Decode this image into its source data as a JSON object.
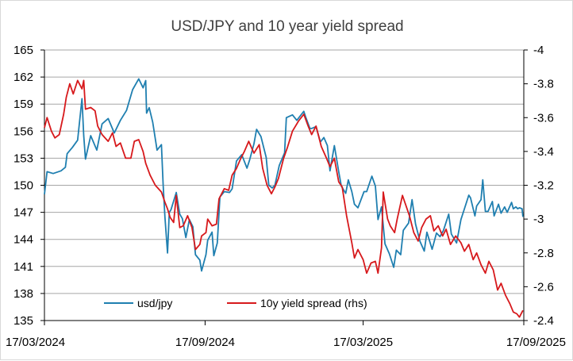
{
  "chart_data": {
    "type": "line",
    "title": "USD/JPY and 10 year yield spread",
    "x_axis": {
      "tick_labels": [
        "17/03/2024",
        "17/09/2024",
        "17/03/2025",
        "17/09/2025"
      ],
      "range": [
        "2024-03-17",
        "2025-09-17"
      ]
    },
    "y_left": {
      "range": [
        135,
        165
      ],
      "ticks": [
        135,
        138,
        141,
        144,
        147,
        150,
        153,
        156,
        159,
        162,
        165
      ]
    },
    "y_right": {
      "range": [
        -2.4,
        -4
      ],
      "ticks": [
        -4,
        -3.8,
        -3.6,
        -3.4,
        -3.2,
        -3,
        -2.8,
        -2.6,
        -2.4
      ]
    },
    "grid": true,
    "legend_position": "bottom-left",
    "series": [
      {
        "name": "usd/jpy",
        "axis": "left",
        "color": "#1f7fb0",
        "points": [
          [
            "2024-03-17",
            149.0
          ],
          [
            "2024-03-20",
            151.5
          ],
          [
            "2024-03-27",
            151.3
          ],
          [
            "2024-04-05",
            151.6
          ],
          [
            "2024-04-10",
            152.0
          ],
          [
            "2024-04-12",
            153.5
          ],
          [
            "2024-04-18",
            154.2
          ],
          [
            "2024-04-24",
            155.0
          ],
          [
            "2024-04-29",
            159.6
          ],
          [
            "2024-05-01",
            155.5
          ],
          [
            "2024-05-03",
            152.9
          ],
          [
            "2024-05-09",
            155.5
          ],
          [
            "2024-05-16",
            153.9
          ],
          [
            "2024-05-22",
            156.8
          ],
          [
            "2024-05-29",
            157.4
          ],
          [
            "2024-06-05",
            155.8
          ],
          [
            "2024-06-12",
            157.2
          ],
          [
            "2024-06-19",
            158.3
          ],
          [
            "2024-06-26",
            160.6
          ],
          [
            "2024-07-03",
            161.8
          ],
          [
            "2024-07-08",
            160.8
          ],
          [
            "2024-07-11",
            161.6
          ],
          [
            "2024-07-12",
            158.0
          ],
          [
            "2024-07-15",
            158.6
          ],
          [
            "2024-07-19",
            157.0
          ],
          [
            "2024-07-24",
            153.9
          ],
          [
            "2024-07-29",
            154.5
          ],
          [
            "2024-07-31",
            150.0
          ],
          [
            "2024-08-02",
            146.5
          ],
          [
            "2024-08-05",
            142.5
          ],
          [
            "2024-08-07",
            147.0
          ],
          [
            "2024-08-09",
            147.3
          ],
          [
            "2024-08-15",
            149.2
          ],
          [
            "2024-08-19",
            146.8
          ],
          [
            "2024-08-22",
            146.3
          ],
          [
            "2024-08-26",
            144.2
          ],
          [
            "2024-08-30",
            146.2
          ],
          [
            "2024-09-03",
            145.4
          ],
          [
            "2024-09-06",
            142.3
          ],
          [
            "2024-09-11",
            141.7
          ],
          [
            "2024-09-13",
            140.5
          ],
          [
            "2024-09-18",
            142.3
          ],
          [
            "2024-09-20",
            143.9
          ],
          [
            "2024-09-25",
            144.8
          ],
          [
            "2024-09-27",
            142.2
          ],
          [
            "2024-10-01",
            143.6
          ],
          [
            "2024-10-04",
            148.7
          ],
          [
            "2024-10-09",
            149.3
          ],
          [
            "2024-10-15",
            149.2
          ],
          [
            "2024-10-18",
            149.6
          ],
          [
            "2024-10-23",
            152.7
          ],
          [
            "2024-10-29",
            153.4
          ],
          [
            "2024-11-04",
            151.9
          ],
          [
            "2024-11-07",
            152.8
          ],
          [
            "2024-11-12",
            154.6
          ],
          [
            "2024-11-15",
            156.2
          ],
          [
            "2024-11-20",
            155.4
          ],
          [
            "2024-11-26",
            153.1
          ],
          [
            "2024-11-29",
            150.0
          ],
          [
            "2024-12-03",
            149.7
          ],
          [
            "2024-12-06",
            150.0
          ],
          [
            "2024-12-11",
            152.2
          ],
          [
            "2024-12-17",
            153.6
          ],
          [
            "2024-12-19",
            157.5
          ],
          [
            "2024-12-26",
            157.8
          ],
          [
            "2024-12-31",
            157.2
          ],
          [
            "2025-01-08",
            158.2
          ],
          [
            "2025-01-10",
            157.6
          ],
          [
            "2025-01-15",
            156.3
          ],
          [
            "2025-01-17",
            156.3
          ],
          [
            "2025-01-22",
            156.5
          ],
          [
            "2025-01-27",
            154.8
          ],
          [
            "2025-01-31",
            155.3
          ],
          [
            "2025-02-04",
            154.4
          ],
          [
            "2025-02-07",
            151.6
          ],
          [
            "2025-02-12",
            154.4
          ],
          [
            "2025-02-17",
            151.5
          ],
          [
            "2025-02-20",
            149.9
          ],
          [
            "2025-02-25",
            149.1
          ],
          [
            "2025-02-28",
            150.6
          ],
          [
            "2025-03-04",
            149.3
          ],
          [
            "2025-03-07",
            147.9
          ],
          [
            "2025-03-11",
            147.5
          ],
          [
            "2025-03-18",
            149.3
          ],
          [
            "2025-03-21",
            149.3
          ],
          [
            "2025-03-27",
            151.0
          ],
          [
            "2025-03-31",
            149.9
          ],
          [
            "2025-04-03",
            146.2
          ],
          [
            "2025-04-07",
            147.6
          ],
          [
            "2025-04-11",
            143.5
          ],
          [
            "2025-04-16",
            142.4
          ],
          [
            "2025-04-21",
            140.9
          ],
          [
            "2025-04-24",
            142.8
          ],
          [
            "2025-04-29",
            142.3
          ],
          [
            "2025-05-02",
            145.0
          ],
          [
            "2025-05-08",
            145.8
          ],
          [
            "2025-05-12",
            148.4
          ],
          [
            "2025-05-16",
            145.7
          ],
          [
            "2025-05-21",
            143.8
          ],
          [
            "2025-05-26",
            142.7
          ],
          [
            "2025-05-29",
            144.8
          ],
          [
            "2025-06-04",
            142.9
          ],
          [
            "2025-06-09",
            144.7
          ],
          [
            "2025-06-13",
            144.3
          ],
          [
            "2025-06-17",
            145.0
          ],
          [
            "2025-06-23",
            146.8
          ],
          [
            "2025-06-26",
            144.6
          ],
          [
            "2025-07-02",
            143.6
          ],
          [
            "2025-07-07",
            146.2
          ],
          [
            "2025-07-11",
            147.4
          ],
          [
            "2025-07-16",
            148.9
          ],
          [
            "2025-07-18",
            148.6
          ],
          [
            "2025-07-23",
            146.6
          ],
          [
            "2025-07-25",
            147.7
          ],
          [
            "2025-07-30",
            148.4
          ],
          [
            "2025-08-01",
            150.6
          ],
          [
            "2025-08-04",
            147.1
          ],
          [
            "2025-08-07",
            147.1
          ],
          [
            "2025-08-12",
            148.2
          ],
          [
            "2025-08-14",
            146.6
          ],
          [
            "2025-08-19",
            147.9
          ],
          [
            "2025-08-22",
            146.9
          ],
          [
            "2025-08-26",
            147.6
          ],
          [
            "2025-08-29",
            147.0
          ],
          [
            "2025-09-03",
            148.1
          ],
          [
            "2025-09-05",
            147.4
          ],
          [
            "2025-09-08",
            147.6
          ],
          [
            "2025-09-10",
            147.4
          ],
          [
            "2025-09-12",
            147.5
          ],
          [
            "2025-09-15",
            147.4
          ],
          [
            "2025-09-16",
            146.5
          ]
        ]
      },
      {
        "name": "10y yield spread (rhs)",
        "axis": "right",
        "color": "#d7191c",
        "points": [
          [
            "2024-03-17",
            -3.54
          ],
          [
            "2024-03-20",
            -3.6
          ],
          [
            "2024-03-25",
            -3.52
          ],
          [
            "2024-03-29",
            -3.48
          ],
          [
            "2024-04-03",
            -3.5
          ],
          [
            "2024-04-08",
            -3.62
          ],
          [
            "2024-04-11",
            -3.72
          ],
          [
            "2024-04-15",
            -3.8
          ],
          [
            "2024-04-19",
            -3.74
          ],
          [
            "2024-04-24",
            -3.82
          ],
          [
            "2024-04-29",
            -3.77
          ],
          [
            "2024-05-01",
            -3.82
          ],
          [
            "2024-05-03",
            -3.65
          ],
          [
            "2024-05-09",
            -3.66
          ],
          [
            "2024-05-14",
            -3.64
          ],
          [
            "2024-05-17",
            -3.55
          ],
          [
            "2024-05-22",
            -3.5
          ],
          [
            "2024-05-29",
            -3.46
          ],
          [
            "2024-06-03",
            -3.51
          ],
          [
            "2024-06-07",
            -3.43
          ],
          [
            "2024-06-12",
            -3.45
          ],
          [
            "2024-06-18",
            -3.36
          ],
          [
            "2024-06-24",
            -3.36
          ],
          [
            "2024-06-28",
            -3.46
          ],
          [
            "2024-07-03",
            -3.47
          ],
          [
            "2024-07-08",
            -3.4
          ],
          [
            "2024-07-11",
            -3.33
          ],
          [
            "2024-07-16",
            -3.26
          ],
          [
            "2024-07-22",
            -3.2
          ],
          [
            "2024-07-29",
            -3.16
          ],
          [
            "2024-08-02",
            -3.1
          ],
          [
            "2024-08-05",
            -3.06
          ],
          [
            "2024-08-08",
            -3.01
          ],
          [
            "2024-08-12",
            -2.98
          ],
          [
            "2024-08-15",
            -3.14
          ],
          [
            "2024-08-19",
            -2.95
          ],
          [
            "2024-08-23",
            -2.96
          ],
          [
            "2024-08-28",
            -3.02
          ],
          [
            "2024-09-02",
            -2.95
          ],
          [
            "2024-09-06",
            -2.82
          ],
          [
            "2024-09-11",
            -2.85
          ],
          [
            "2024-09-13",
            -2.9
          ],
          [
            "2024-09-18",
            -2.92
          ],
          [
            "2024-09-20",
            -3.0
          ],
          [
            "2024-09-25",
            -2.96
          ],
          [
            "2024-09-30",
            -2.97
          ],
          [
            "2024-10-03",
            -3.12
          ],
          [
            "2024-10-09",
            -3.18
          ],
          [
            "2024-10-14",
            -3.17
          ],
          [
            "2024-10-18",
            -3.26
          ],
          [
            "2024-10-23",
            -3.3
          ],
          [
            "2024-10-28",
            -3.36
          ],
          [
            "2024-11-01",
            -3.4
          ],
          [
            "2024-11-06",
            -3.46
          ],
          [
            "2024-11-12",
            -3.39
          ],
          [
            "2024-11-18",
            -3.44
          ],
          [
            "2024-11-22",
            -3.3
          ],
          [
            "2024-11-27",
            -3.2
          ],
          [
            "2024-12-02",
            -3.15
          ],
          [
            "2024-12-06",
            -3.19
          ],
          [
            "2024-12-10",
            -3.24
          ],
          [
            "2024-12-16",
            -3.36
          ],
          [
            "2024-12-20",
            -3.42
          ],
          [
            "2024-12-26",
            -3.52
          ],
          [
            "2025-01-02",
            -3.58
          ],
          [
            "2025-01-08",
            -3.62
          ],
          [
            "2025-01-13",
            -3.55
          ],
          [
            "2025-01-17",
            -3.5
          ],
          [
            "2025-01-22",
            -3.55
          ],
          [
            "2025-01-28",
            -3.43
          ],
          [
            "2025-02-03",
            -3.36
          ],
          [
            "2025-02-07",
            -3.31
          ],
          [
            "2025-02-12",
            -3.36
          ],
          [
            "2025-02-17",
            -3.22
          ],
          [
            "2025-02-21",
            -3.19
          ],
          [
            "2025-02-26",
            -3.02
          ],
          [
            "2025-03-04",
            -2.86
          ],
          [
            "2025-03-07",
            -2.77
          ],
          [
            "2025-03-11",
            -2.82
          ],
          [
            "2025-03-17",
            -2.76
          ],
          [
            "2025-03-21",
            -2.68
          ],
          [
            "2025-03-26",
            -2.74
          ],
          [
            "2025-03-31",
            -2.75
          ],
          [
            "2025-04-03",
            -2.68
          ],
          [
            "2025-04-07",
            -2.83
          ],
          [
            "2025-04-09",
            -3.16
          ],
          [
            "2025-04-14",
            -3.0
          ],
          [
            "2025-04-17",
            -2.96
          ],
          [
            "2025-04-22",
            -2.92
          ],
          [
            "2025-04-25",
            -3.0
          ],
          [
            "2025-05-01",
            -3.14
          ],
          [
            "2025-05-05",
            -3.08
          ],
          [
            "2025-05-09",
            -3.02
          ],
          [
            "2025-05-14",
            -2.92
          ],
          [
            "2025-05-19",
            -2.87
          ],
          [
            "2025-05-23",
            -2.95
          ],
          [
            "2025-05-28",
            -3.0
          ],
          [
            "2025-06-02",
            -3.02
          ],
          [
            "2025-06-06",
            -2.93
          ],
          [
            "2025-06-11",
            -2.96
          ],
          [
            "2025-06-16",
            -2.9
          ],
          [
            "2025-06-20",
            -2.94
          ],
          [
            "2025-06-25",
            -2.85
          ],
          [
            "2025-07-01",
            -2.9
          ],
          [
            "2025-07-07",
            -2.86
          ],
          [
            "2025-07-11",
            -2.81
          ],
          [
            "2025-07-16",
            -2.85
          ],
          [
            "2025-07-21",
            -2.76
          ],
          [
            "2025-07-25",
            -2.8
          ],
          [
            "2025-07-30",
            -2.73
          ],
          [
            "2025-08-04",
            -2.68
          ],
          [
            "2025-08-08",
            -2.75
          ],
          [
            "2025-08-13",
            -2.7
          ],
          [
            "2025-08-18",
            -2.58
          ],
          [
            "2025-08-22",
            -2.62
          ],
          [
            "2025-08-27",
            -2.55
          ],
          [
            "2025-09-01",
            -2.5
          ],
          [
            "2025-09-05",
            -2.45
          ],
          [
            "2025-09-09",
            -2.44
          ],
          [
            "2025-09-12",
            -2.42
          ],
          [
            "2025-09-16",
            -2.46
          ]
        ]
      }
    ]
  }
}
